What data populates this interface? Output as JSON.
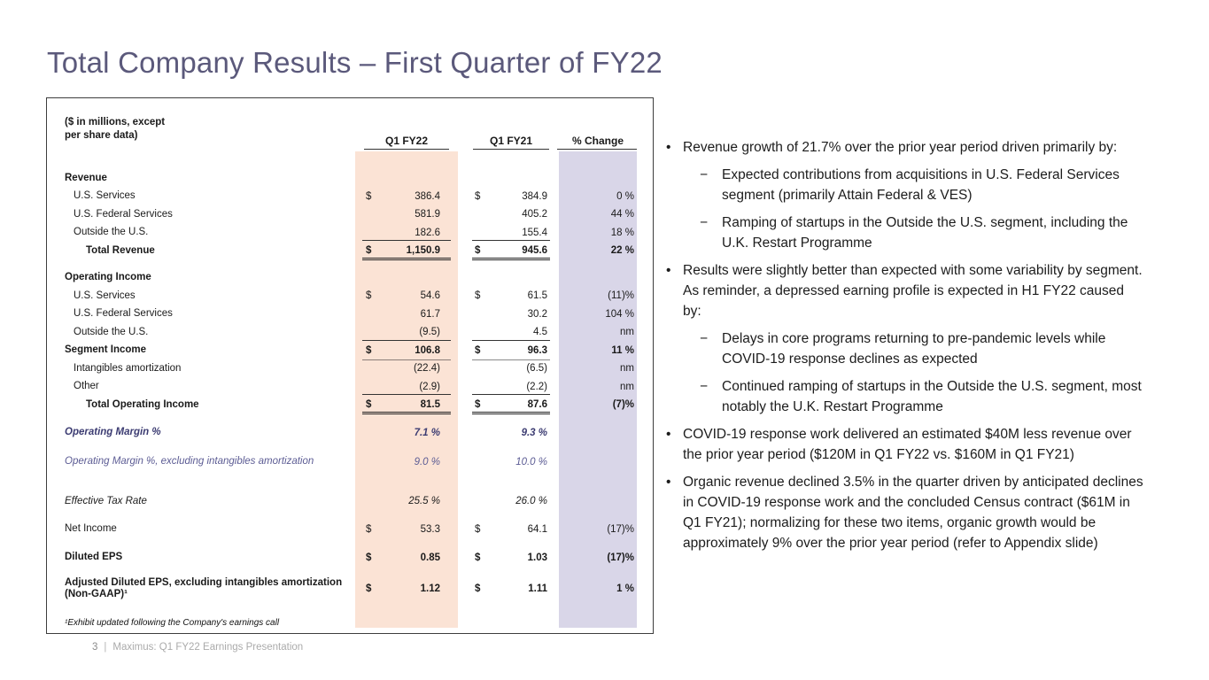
{
  "slide": {
    "title": "Total Company Results – First Quarter of FY22",
    "footer": {
      "page_number": "3",
      "separator": "|",
      "text": "Maximus: Q1 FY22 Earnings Presentation"
    }
  },
  "colors": {
    "title_text": "#5b597b",
    "fy22_column_band": "#fbe3d5",
    "change_column_band": "#d9d6e8",
    "margin_row_strong": "#3c3c72",
    "margin_row_soft": "#5c5c94"
  },
  "table": {
    "units_note_line1": "($ in millions, except",
    "units_note_line2": "per share data)",
    "columns": {
      "c1": "Q1 FY22",
      "c2": "Q1 FY21",
      "c3": "% Change"
    },
    "footnote": "¹Exhibit updated following the Company's earnings call",
    "rows": [
      {
        "label": "Revenue"
      },
      {
        "label": "U.S. Services",
        "d22": "$",
        "v22": "386.4",
        "d21": "$",
        "v21": "384.9",
        "pct": "0 %"
      },
      {
        "label": "U.S. Federal Services",
        "v22": "581.9",
        "v21": "405.2",
        "pct": "44 %"
      },
      {
        "label": "Outside the U.S.",
        "v22": "182.6",
        "v21": "155.4",
        "pct": "18 %"
      },
      {
        "label": "Total Revenue",
        "d22": "$",
        "v22": "1,150.9",
        "d21": "$",
        "v21": "945.6",
        "pct": "22 %"
      },
      {
        "label": "Operating Income"
      },
      {
        "label": "U.S. Services",
        "d22": "$",
        "v22": "54.6",
        "d21": "$",
        "v21": "61.5",
        "pct": "(11)%"
      },
      {
        "label": "U.S. Federal Services",
        "v22": "61.7",
        "v21": "30.2",
        "pct": "104 %"
      },
      {
        "label": "Outside the U.S.",
        "v22": "(9.5)",
        "v21": "4.5",
        "pct": "nm"
      },
      {
        "label": "Segment Income",
        "d22": "$",
        "v22": "106.8",
        "d21": "$",
        "v21": "96.3",
        "pct": "11 %"
      },
      {
        "label": "Intangibles amortization",
        "v22": "(22.4)",
        "v21": "(6.5)",
        "pct": "nm"
      },
      {
        "label": "Other",
        "v22": "(2.9)",
        "v21": "(2.2)",
        "pct": "nm"
      },
      {
        "label": "Total Operating Income",
        "d22": "$",
        "v22": "81.5",
        "d21": "$",
        "v21": "87.6",
        "pct": "(7)%"
      },
      {
        "label": "Operating Margin %",
        "v22": "7.1 %",
        "v21": "9.3 %"
      },
      {
        "label": "Operating Margin %, excluding intangibles amortization",
        "v22": "9.0 %",
        "v21": "10.0 %"
      },
      {
        "label": "Effective Tax Rate",
        "v22": "25.5 %",
        "v21": "26.0 %"
      },
      {
        "label": "Net Income",
        "d22": "$",
        "v22": "53.3",
        "d21": "$",
        "v21": "64.1",
        "pct": "(17)%"
      },
      {
        "label": "Diluted EPS",
        "d22": "$",
        "v22": "0.85",
        "d21": "$",
        "v21": "1.03",
        "pct": "(17)%"
      },
      {
        "label": "Adjusted Diluted EPS, excluding intangibles amortization (Non-GAAP)¹",
        "d22": "$",
        "v22": "1.12",
        "d21": "$",
        "v21": "1.11",
        "pct": "1 %"
      }
    ]
  },
  "notes": {
    "bullet_char": "•",
    "dash_char": "−",
    "bullets": [
      {
        "text": "Revenue growth of 21.7% over the prior year period driven primarily by:",
        "subs": [
          {
            "text": "Expected contributions from acquisitions in U.S. Federal Services segment (primarily Attain Federal & VES)"
          },
          {
            "text": "Ramping of startups in the Outside the U.S. segment, including the U.K. Restart Programme"
          }
        ]
      },
      {
        "text": "Results were slightly better than expected with some variability by segment. As reminder, a depressed earning profile is expected in H1 FY22 caused by:",
        "subs": [
          {
            "text": "Delays in core programs returning to pre-pandemic levels while COVID-19 response declines as expected"
          },
          {
            "text": "Continued ramping of startups in the Outside the U.S. segment, most notably the U.K. Restart Programme"
          }
        ]
      },
      {
        "text": "COVID-19 response work delivered an estimated $40M less revenue over the prior year period ($120M in Q1 FY22 vs. $160M in Q1 FY21)"
      },
      {
        "text": "Organic revenue declined 3.5% in the quarter driven by anticipated declines in COVID-19 response work and the concluded Census contract ($61M in Q1 FY21); normalizing for these two items, organic growth would be approximately 9% over the prior year period (refer to Appendix slide)"
      }
    ]
  }
}
